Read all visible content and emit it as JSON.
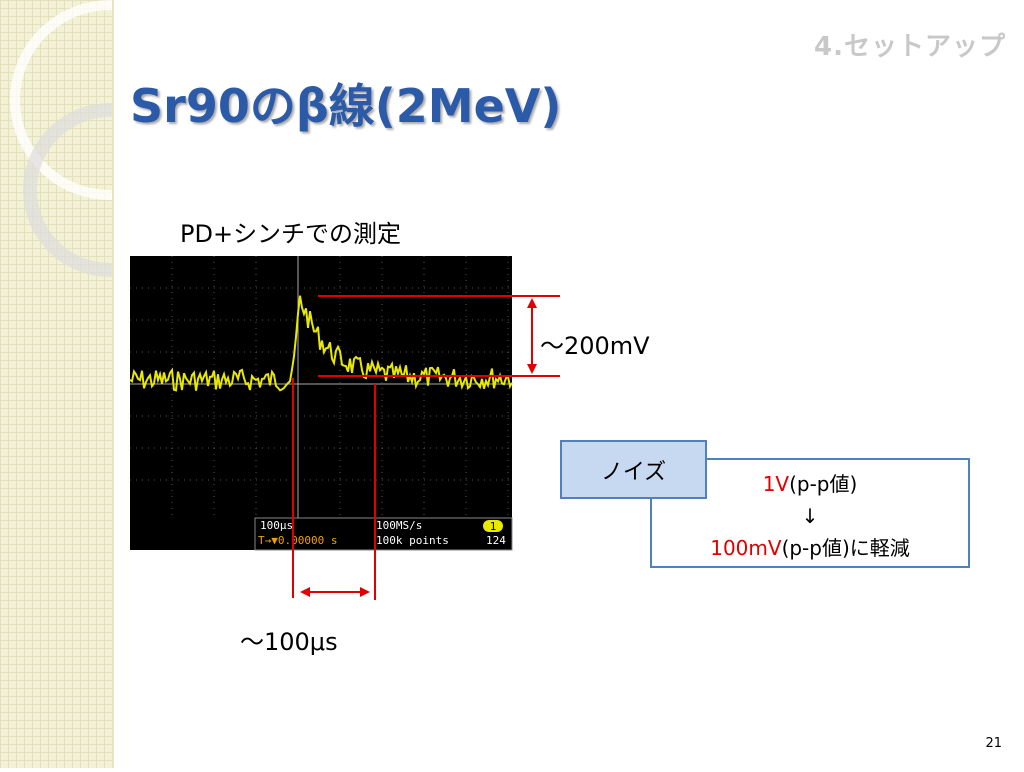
{
  "header": {
    "section": "4.セットアップ",
    "title": "Sr90のβ線(2MeV)"
  },
  "figure": {
    "caption": "PD+シンチでの測定",
    "scope": {
      "timebase": "100μs",
      "sample_rate": "100MS/s",
      "channel": "1",
      "trigger": "T→▼0.00000 s",
      "record_length": "100k points",
      "trigger_level": "124"
    },
    "amplitude_note": "～200mV",
    "time_note": "～100μs"
  },
  "noise": {
    "label": "ノイズ",
    "before_value": "1V",
    "before_unit": "(p-p値)",
    "arrow": "↓",
    "after_value": "100mV",
    "after_unit": "(p-p値)に軽減"
  },
  "footer": {
    "page_number": "21"
  }
}
